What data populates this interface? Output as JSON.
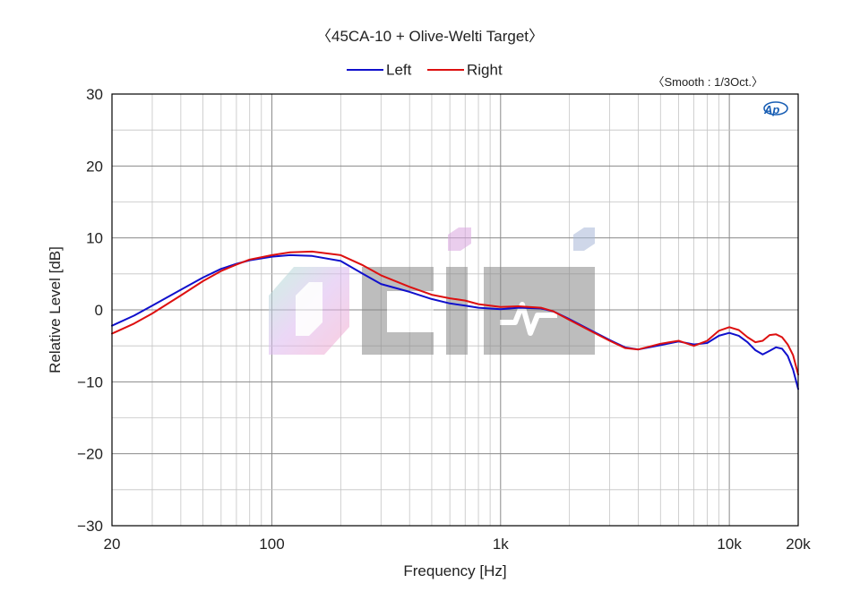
{
  "chart_data": {
    "type": "line",
    "title": "〈45CA-10 + Olive-Welti Target〉",
    "subtitle": "〈Smooth : 1/3Oct.〉",
    "xlabel": "Frequency [Hz]",
    "ylabel": "Relative Level [dB]",
    "x_scale": "log",
    "xlim": [
      20,
      20000
    ],
    "ylim": [
      -30,
      30
    ],
    "grid": true,
    "legend_position": "top-center",
    "x_ticks": [
      {
        "value": 20,
        "label": "20"
      },
      {
        "value": 100,
        "label": "100"
      },
      {
        "value": 1000,
        "label": "1k"
      },
      {
        "value": 10000,
        "label": "10k"
      },
      {
        "value": 20000,
        "label": "20k"
      }
    ],
    "y_ticks": [
      {
        "value": 30,
        "label": "30"
      },
      {
        "value": 20,
        "label": "20"
      },
      {
        "value": 10,
        "label": "10"
      },
      {
        "value": 0,
        "label": "0"
      },
      {
        "value": -10,
        "label": "−10"
      },
      {
        "value": -20,
        "label": "−20"
      },
      {
        "value": -30,
        "label": "−30"
      }
    ],
    "series": [
      {
        "name": "Left",
        "color": "#1010cc",
        "points": [
          [
            20,
            -2.2
          ],
          [
            25,
            -0.8
          ],
          [
            30,
            0.6
          ],
          [
            40,
            2.8
          ],
          [
            50,
            4.5
          ],
          [
            60,
            5.7
          ],
          [
            70,
            6.4
          ],
          [
            80,
            6.9
          ],
          [
            100,
            7.4
          ],
          [
            120,
            7.6
          ],
          [
            150,
            7.5
          ],
          [
            200,
            6.8
          ],
          [
            250,
            5.0
          ],
          [
            300,
            3.6
          ],
          [
            400,
            2.5
          ],
          [
            500,
            1.5
          ],
          [
            600,
            0.9
          ],
          [
            700,
            0.6
          ],
          [
            800,
            0.3
          ],
          [
            1000,
            0.1
          ],
          [
            1200,
            0.3
          ],
          [
            1500,
            0.2
          ],
          [
            1700,
            -0.2
          ],
          [
            2000,
            -1.3
          ],
          [
            2500,
            -2.9
          ],
          [
            3000,
            -4.2
          ],
          [
            3500,
            -5.2
          ],
          [
            4000,
            -5.5
          ],
          [
            5000,
            -4.9
          ],
          [
            6000,
            -4.4
          ],
          [
            7000,
            -4.8
          ],
          [
            8000,
            -4.6
          ],
          [
            9000,
            -3.6
          ],
          [
            10000,
            -3.2
          ],
          [
            11000,
            -3.6
          ],
          [
            12000,
            -4.5
          ],
          [
            13000,
            -5.6
          ],
          [
            14000,
            -6.2
          ],
          [
            15000,
            -5.7
          ],
          [
            16000,
            -5.2
          ],
          [
            17000,
            -5.4
          ],
          [
            18000,
            -6.4
          ],
          [
            19000,
            -8.3
          ],
          [
            20000,
            -11.0
          ]
        ]
      },
      {
        "name": "Right",
        "color": "#dd1010",
        "points": [
          [
            20,
            -3.3
          ],
          [
            25,
            -1.9
          ],
          [
            30,
            -0.5
          ],
          [
            40,
            2.0
          ],
          [
            50,
            4.0
          ],
          [
            60,
            5.4
          ],
          [
            70,
            6.3
          ],
          [
            80,
            7.0
          ],
          [
            100,
            7.6
          ],
          [
            120,
            8.0
          ],
          [
            150,
            8.1
          ],
          [
            200,
            7.6
          ],
          [
            250,
            6.2
          ],
          [
            300,
            4.8
          ],
          [
            400,
            3.2
          ],
          [
            500,
            2.1
          ],
          [
            600,
            1.6
          ],
          [
            700,
            1.3
          ],
          [
            800,
            0.8
          ],
          [
            1000,
            0.4
          ],
          [
            1200,
            0.5
          ],
          [
            1500,
            0.3
          ],
          [
            1700,
            -0.2
          ],
          [
            2000,
            -1.4
          ],
          [
            2500,
            -3.0
          ],
          [
            3000,
            -4.3
          ],
          [
            3500,
            -5.3
          ],
          [
            4000,
            -5.5
          ],
          [
            5000,
            -4.7
          ],
          [
            6000,
            -4.3
          ],
          [
            7000,
            -5.0
          ],
          [
            8000,
            -4.3
          ],
          [
            9000,
            -2.9
          ],
          [
            10000,
            -2.4
          ],
          [
            11000,
            -2.8
          ],
          [
            12000,
            -3.8
          ],
          [
            13000,
            -4.5
          ],
          [
            14000,
            -4.3
          ],
          [
            15000,
            -3.5
          ],
          [
            16000,
            -3.4
          ],
          [
            17000,
            -3.8
          ],
          [
            18000,
            -4.8
          ],
          [
            19000,
            -6.3
          ],
          [
            20000,
            -9.0
          ]
        ]
      }
    ]
  }
}
